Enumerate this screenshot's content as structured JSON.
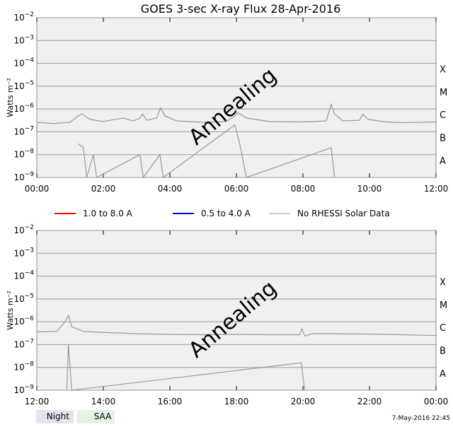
{
  "chart_data": [
    {
      "type": "line",
      "title": "GOES 3-sec X-ray Flux   28-Apr-2016",
      "ylabel": "Watts m⁻²",
      "yscale": "log",
      "ylim": [
        1e-09,
        0.01
      ],
      "xlim": [
        0,
        12
      ],
      "xticks": [
        "00:00",
        "02:00",
        "04:00",
        "06:00",
        "08:00",
        "10:00",
        "12:00"
      ],
      "yticks": [
        "-2",
        "-3",
        "-4",
        "-5",
        "-6",
        "-7",
        "-8",
        "-9"
      ],
      "class_labels": [
        "X",
        "M",
        "C",
        "B",
        "A"
      ],
      "annotation": "Annealing",
      "grid": true,
      "series": [
        {
          "name": "1.0 to 8.0 A",
          "points": [
            [
              0,
              2.6e-07
            ],
            [
              0.5,
              2.3e-07
            ],
            [
              1,
              2.6e-07
            ],
            [
              1.25,
              5e-07
            ],
            [
              1.35,
              6e-07
            ],
            [
              1.6,
              3.5e-07
            ],
            [
              2,
              2.8e-07
            ],
            [
              2.4,
              3.6e-07
            ],
            [
              2.6,
              4e-07
            ],
            [
              2.9,
              3e-07
            ],
            [
              3.1,
              4e-07
            ],
            [
              3.18,
              6e-07
            ],
            [
              3.3,
              3.2e-07
            ],
            [
              3.6,
              4e-07
            ],
            [
              3.72,
              1.1e-06
            ],
            [
              3.85,
              5e-07
            ],
            [
              4.2,
              3e-07
            ],
            [
              5,
              2.6e-07
            ],
            [
              5.7,
              2.8e-07
            ],
            [
              5.95,
              5e-07
            ],
            [
              6.05,
              7e-07
            ],
            [
              6.3,
              4e-07
            ],
            [
              7,
              2.8e-07
            ],
            [
              8,
              2.7e-07
            ],
            [
              8.7,
              3e-07
            ],
            [
              8.85,
              1.6e-06
            ],
            [
              8.95,
              6e-07
            ],
            [
              9.2,
              3e-07
            ],
            [
              9.7,
              3.2e-07
            ],
            [
              9.8,
              6e-07
            ],
            [
              9.95,
              3.5e-07
            ],
            [
              10.5,
              2.7e-07
            ],
            [
              11,
              2.5e-07
            ],
            [
              12,
              2.7e-07
            ]
          ]
        },
        {
          "name": "0.5 to 4.0 A",
          "points": [
            [
              1.25,
              3e-08
            ],
            [
              1.4,
              2e-08
            ],
            [
              1.5,
              1e-09
            ],
            [
              1.7,
              1e-08
            ],
            [
              1.8,
              1e-09
            ],
            [
              3.1,
              1e-08
            ],
            [
              3.2,
              1e-09
            ],
            [
              3.7,
              1e-08
            ],
            [
              3.8,
              1e-09
            ],
            [
              5.95,
              2e-07
            ],
            [
              6.1,
              3e-08
            ],
            [
              6.3,
              1e-09
            ],
            [
              8.85,
              2e-08
            ],
            [
              8.95,
              1e-09
            ]
          ]
        }
      ]
    },
    {
      "type": "line",
      "ylabel": "Watts m⁻²",
      "yscale": "log",
      "ylim": [
        1e-09,
        0.01
      ],
      "xlim": [
        12,
        24
      ],
      "xticks": [
        "12:00",
        "14:00",
        "16:00",
        "18:00",
        "20:00",
        "22:00",
        "00:00"
      ],
      "yticks": [
        "-2",
        "-3",
        "-4",
        "-5",
        "-6",
        "-7",
        "-8",
        "-9"
      ],
      "class_labels": [
        "X",
        "M",
        "C",
        "B",
        "A"
      ],
      "annotation": "Annealing",
      "grid": true,
      "series": [
        {
          "name": "1.0 to 8.0 A",
          "points": [
            [
              12,
              3.6e-07
            ],
            [
              12.6,
              3.8e-07
            ],
            [
              12.85,
              1e-06
            ],
            [
              12.95,
              1.9e-06
            ],
            [
              13.05,
              6e-07
            ],
            [
              13.4,
              3.8e-07
            ],
            [
              14,
              3.4e-07
            ],
            [
              15,
              3e-07
            ],
            [
              16,
              2.8e-07
            ],
            [
              17,
              2.7e-07
            ],
            [
              18,
              2.8e-07
            ],
            [
              19,
              2.7e-07
            ],
            [
              19.9,
              2.7e-07
            ],
            [
              19.97,
              5e-07
            ],
            [
              20.05,
              2.4e-07
            ],
            [
              20.3,
              3e-07
            ],
            [
              21,
              3e-07
            ],
            [
              22,
              2.9e-07
            ],
            [
              23,
              2.7e-07
            ],
            [
              24,
              2.5e-07
            ]
          ]
        },
        {
          "name": "0.5 to 4.0 A",
          "points": [
            [
              12.9,
              1e-09
            ],
            [
              12.95,
              1e-07
            ],
            [
              13.05,
              1e-09
            ],
            [
              19.95,
              1.6e-08
            ],
            [
              20.05,
              1e-09
            ]
          ]
        }
      ]
    }
  ],
  "legend": [
    {
      "label": "1.0 to 8.0 A",
      "color": "#ff0000"
    },
    {
      "label": "0.5 to 4.0 A",
      "color": "#0000ff"
    },
    {
      "label": "No RHESSI Solar Data",
      "color": "#999999"
    }
  ],
  "footer": {
    "night": "Night",
    "saa": "SAA",
    "timestamp": "7-May-2016 22:45"
  },
  "colors": {
    "plot_bg": "#f0f0f0",
    "grid": "#999999",
    "curve": "#999999",
    "night": "#e4e4f0",
    "saa": "#e4f2e4"
  }
}
